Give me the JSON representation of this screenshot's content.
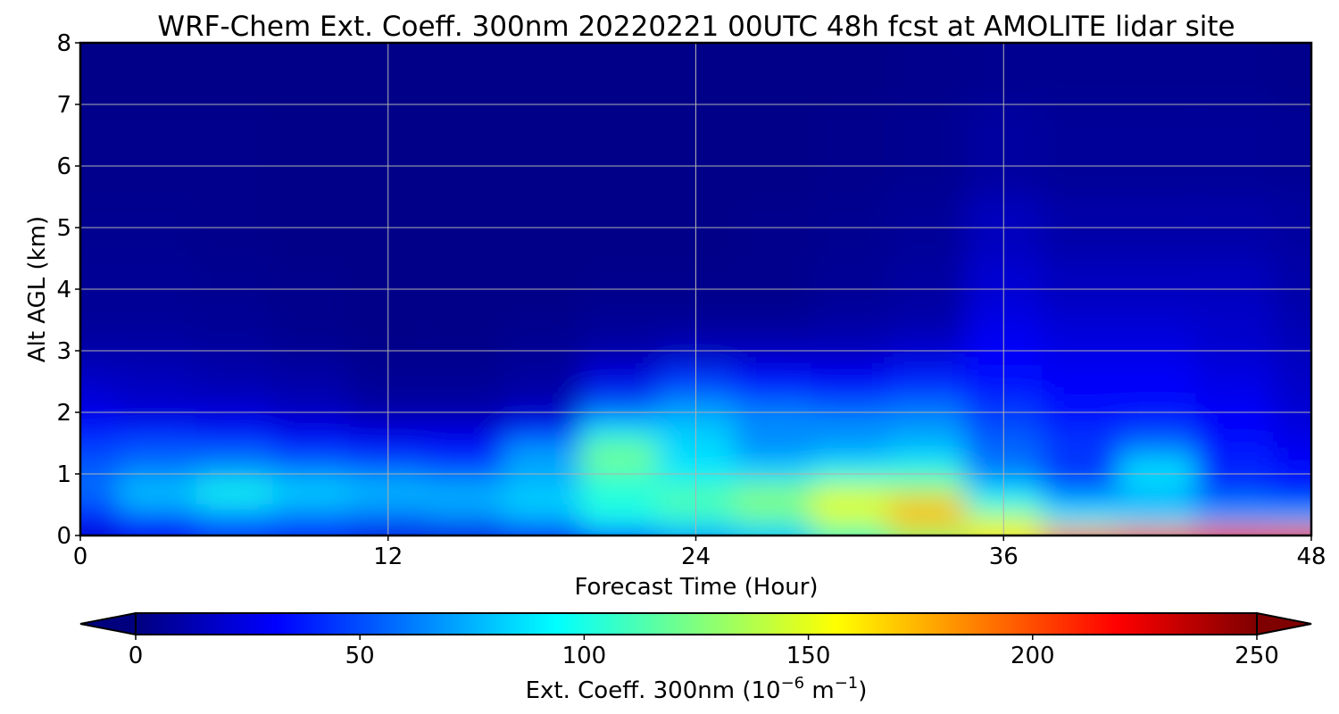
{
  "chart_data": {
    "type": "heatmap",
    "title": "WRF-Chem Ext. Coeff. 300nm  20220221 00UTC 48h fcst at AMOLITE lidar site",
    "xlabel": "Forecast Time (Hour)",
    "ylabel": "Alt AGL (km)",
    "xlim": [
      0,
      48
    ],
    "ylim": [
      0,
      8
    ],
    "x_ticks": [
      "0",
      "12",
      "24",
      "36",
      "48"
    ],
    "y_ticks": [
      "0",
      "1",
      "2",
      "3",
      "4",
      "5",
      "6",
      "7",
      "8"
    ],
    "grid": true,
    "colormap": "jet",
    "colorbar": {
      "label": "Ext. Coeff. 300nm  (10",
      "label_exp1": "−6",
      "label_mid": " m",
      "label_exp2": "−1",
      "label_end": ")",
      "ticks": [
        "0",
        "50",
        "100",
        "150",
        "200",
        "250"
      ],
      "range": [
        0,
        250
      ],
      "extend": "both"
    },
    "x_hours": [
      0,
      3,
      6,
      9,
      12,
      15,
      18,
      21,
      24,
      27,
      30,
      33,
      36,
      39,
      42,
      45,
      48
    ],
    "y_km": [
      0,
      0.25,
      0.5,
      0.75,
      1.0,
      1.25,
      1.5,
      1.75,
      2.0,
      2.5,
      3.0,
      3.5,
      4.0,
      5.0,
      6.0,
      8.0
    ],
    "values": [
      [
        20,
        30,
        45,
        40,
        25,
        25,
        30,
        50,
        70,
        80,
        110,
        130,
        160,
        190,
        200,
        205,
        210
      ],
      [
        35,
        40,
        55,
        55,
        55,
        60,
        70,
        95,
        100,
        110,
        140,
        175,
        140,
        95,
        90,
        75,
        80
      ],
      [
        50,
        75,
        85,
        75,
        70,
        75,
        85,
        105,
        115,
        130,
        155,
        170,
        100,
        75,
        70,
        60,
        50
      ],
      [
        60,
        80,
        100,
        85,
        80,
        75,
        80,
        100,
        110,
        120,
        135,
        130,
        85,
        60,
        80,
        45,
        40
      ],
      [
        55,
        65,
        70,
        65,
        60,
        55,
        70,
        110,
        90,
        85,
        100,
        105,
        60,
        40,
        90,
        40,
        35
      ],
      [
        50,
        55,
        60,
        50,
        45,
        40,
        75,
        125,
        85,
        75,
        80,
        85,
        60,
        45,
        75,
        40,
        30
      ],
      [
        45,
        50,
        45,
        35,
        30,
        30,
        60,
        110,
        85,
        60,
        65,
        75,
        55,
        45,
        55,
        35,
        25
      ],
      [
        35,
        35,
        30,
        25,
        20,
        20,
        35,
        85,
        80,
        70,
        70,
        70,
        50,
        40,
        45,
        30,
        25
      ],
      [
        25,
        20,
        20,
        15,
        10,
        10,
        15,
        55,
        70,
        60,
        55,
        60,
        45,
        35,
        35,
        30,
        20
      ],
      [
        18,
        15,
        12,
        10,
        5,
        5,
        8,
        25,
        45,
        35,
        30,
        40,
        35,
        30,
        30,
        25,
        18
      ],
      [
        10,
        10,
        8,
        5,
        3,
        3,
        5,
        10,
        15,
        15,
        15,
        20,
        30,
        25,
        25,
        20,
        15
      ],
      [
        6,
        6,
        5,
        3,
        2,
        2,
        3,
        5,
        5,
        5,
        8,
        10,
        25,
        20,
        20,
        18,
        12
      ],
      [
        5,
        5,
        4,
        3,
        2,
        2,
        2,
        3,
        3,
        3,
        5,
        8,
        20,
        15,
        15,
        15,
        10
      ],
      [
        4,
        4,
        3,
        2,
        2,
        2,
        2,
        2,
        2,
        3,
        4,
        6,
        15,
        10,
        10,
        10,
        8
      ],
      [
        3,
        3,
        3,
        2,
        2,
        2,
        2,
        2,
        2,
        2,
        3,
        4,
        8,
        6,
        6,
        6,
        5
      ],
      [
        2,
        2,
        2,
        2,
        2,
        2,
        2,
        2,
        2,
        2,
        2,
        3,
        4,
        4,
        4,
        4,
        3
      ]
    ]
  }
}
